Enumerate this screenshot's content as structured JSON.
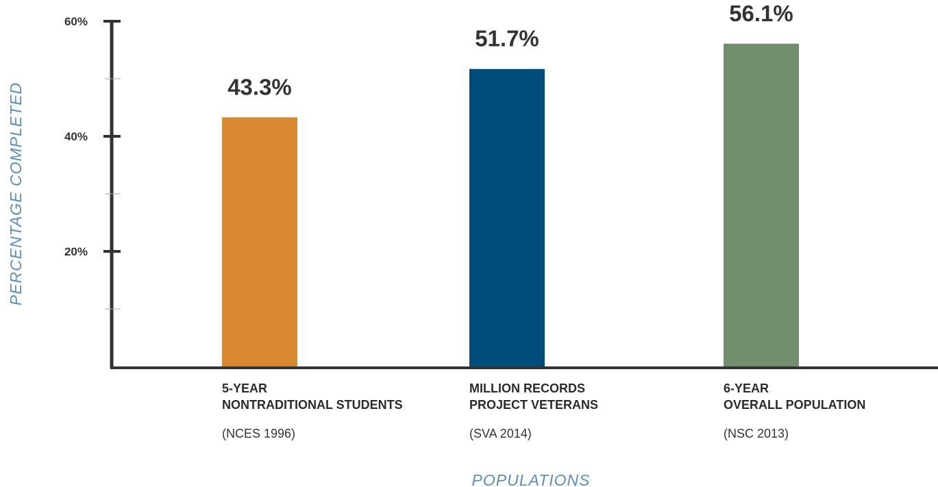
{
  "chart_data": {
    "type": "bar",
    "categories": [
      {
        "line1": "5-YEAR",
        "line2": "NONTRADITIONAL STUDENTS",
        "source": "(NCES 1996)"
      },
      {
        "line1": "MILLION RECORDS",
        "line2": "PROJECT VETERANS",
        "source": "(SVA 2014)"
      },
      {
        "line1": "6-YEAR",
        "line2": "OVERALL POPULATION",
        "source": "(NSC 2013)"
      }
    ],
    "values": [
      43.3,
      51.7,
      56.1
    ],
    "value_labels": [
      "43.3%",
      "51.7%",
      "56.1%"
    ],
    "colors": [
      "#d88830",
      "#004d7c",
      "#728e6e"
    ],
    "ylim": [
      0,
      60
    ],
    "major_ticks": [
      {
        "value": 60,
        "label": "60%"
      },
      {
        "value": 40,
        "label": "40%"
      },
      {
        "value": 20,
        "label": "20%"
      }
    ],
    "minor_ticks": [
      50,
      30,
      10
    ],
    "xlabel": "POPULATIONS",
    "ylabel": "PERCENTAGE  COMPLETED",
    "grid": false,
    "legend": "none"
  }
}
